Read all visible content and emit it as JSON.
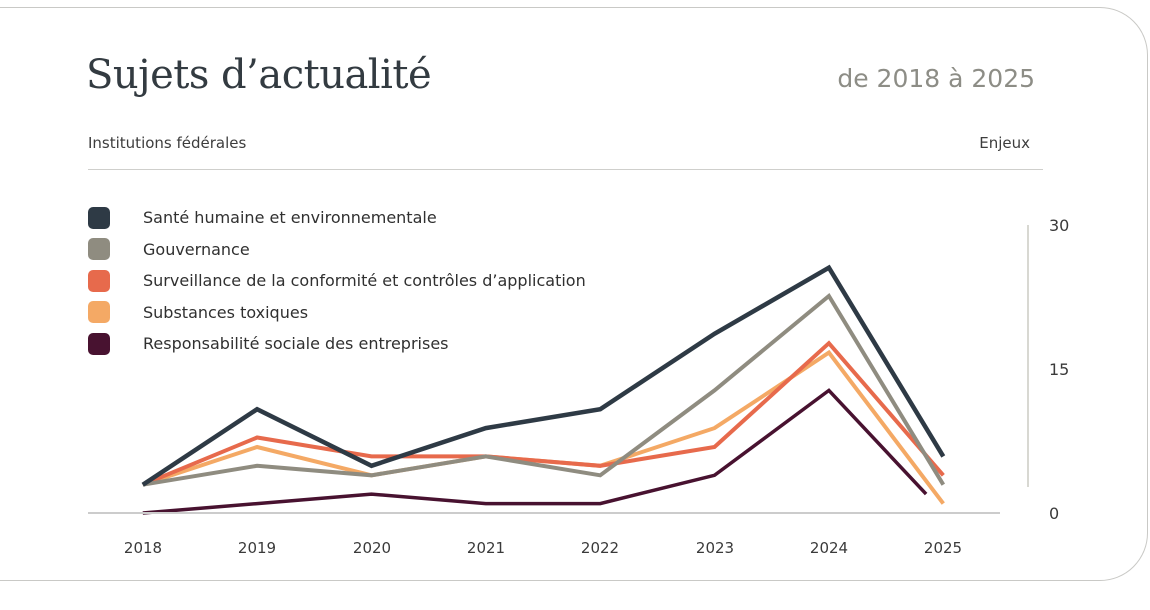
{
  "header": {
    "title": "Sujets d’actualité",
    "date_range": "de 2018 à 2025"
  },
  "tabs": {
    "left_label": "Institutions fédérales",
    "right_label": "Enjeux"
  },
  "chart_data": {
    "type": "line",
    "title": "Sujets d’actualité",
    "subtitle": "de 2018 à 2025",
    "xlabel": "",
    "ylabel": "",
    "categories": [
      2018,
      2019,
      2020,
      2021,
      2022,
      2023,
      2024,
      2025
    ],
    "series": [
      {
        "name": "Santé humaine et environnementale",
        "color": "#2e3a45",
        "values": [
          3,
          11,
          5,
          9,
          11,
          19,
          26,
          6
        ]
      },
      {
        "name": "Gouvernance",
        "color": "#8f8c80",
        "values": [
          3,
          5,
          4,
          6,
          4,
          13,
          23,
          3
        ]
      },
      {
        "name": "Surveillance de la conformité et contrôles d’application",
        "color": "#e76a4c",
        "values": [
          3,
          8,
          6,
          6,
          5,
          7,
          18,
          4
        ]
      },
      {
        "name": "Substances toxiques",
        "color": "#f4a965",
        "values": [
          3,
          7,
          4,
          6,
          5,
          9,
          17,
          1
        ]
      },
      {
        "name": "Responsabilité sociale des entreprises",
        "color": "#481230",
        "values": [
          0,
          1,
          2,
          1,
          1,
          4,
          13,
          2
        ],
        "end_x": 2024.85
      }
    ],
    "yticks": [
      0,
      15,
      30
    ],
    "ylim": [
      0,
      30
    ],
    "grid": false,
    "legend_position": "top-left",
    "y_axis_side": "right"
  }
}
